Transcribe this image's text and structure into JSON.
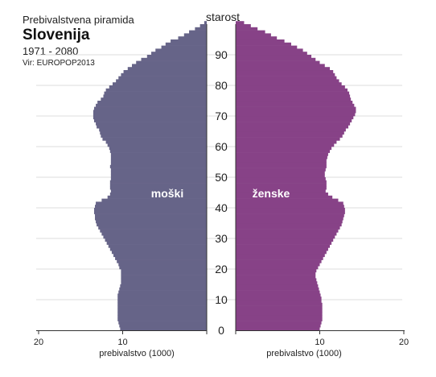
{
  "header": {
    "line1": "Prebivalstvena piramida",
    "title": "Slovenija",
    "period": "1971 - 2080",
    "source": "Vir: EUROPOP2013"
  },
  "colors": {
    "male": "#666488",
    "female": "#874287",
    "grid": "#dddddd",
    "axis": "#333333"
  },
  "chart_data": {
    "type": "bar",
    "orientation": "horizontal",
    "ylabel": "starost",
    "xlabel": "prebivalstvo (1000)",
    "xlim": [
      0,
      20
    ],
    "ylim": [
      0,
      100
    ],
    "y_ticks": [
      0,
      10,
      20,
      30,
      40,
      50,
      60,
      70,
      80,
      90
    ],
    "x_ticks_left": [
      "20",
      "10"
    ],
    "x_ticks_right": [
      "10",
      "20"
    ],
    "series": [
      {
        "name": "moški",
        "side": "left",
        "values": [
          10.3,
          10.4,
          10.5,
          10.6,
          10.6,
          10.6,
          10.6,
          10.6,
          10.6,
          10.6,
          10.6,
          10.6,
          10.5,
          10.4,
          10.3,
          10.2,
          10.2,
          10.2,
          10.2,
          10.2,
          10.4,
          10.5,
          10.7,
          10.9,
          11.1,
          11.3,
          11.5,
          11.7,
          11.9,
          12.1,
          12.3,
          12.5,
          12.7,
          12.9,
          13.1,
          13.2,
          13.3,
          13.3,
          13.4,
          13.4,
          13.3,
          13.2,
          12.5,
          11.8,
          11.5,
          11.4,
          11.5,
          11.5,
          11.5,
          11.4,
          11.4,
          11.4,
          11.4,
          11.5,
          11.4,
          11.4,
          11.4,
          11.4,
          11.5,
          11.6,
          11.8,
          12.0,
          12.4,
          12.6,
          12.7,
          12.8,
          13.1,
          13.2,
          13.4,
          13.5,
          13.5,
          13.5,
          13.4,
          13.2,
          13.0,
          12.6,
          12.3,
          12.2,
          12.0,
          11.6,
          11.2,
          10.8,
          10.5,
          10.2,
          9.9,
          9.4,
          8.9,
          8.4,
          7.8,
          7.1,
          6.6,
          6.1,
          5.4,
          4.9,
          4.3,
          3.4,
          2.7,
          2.1,
          1.4,
          0.8,
          0.3
        ]
      },
      {
        "name": "ženske",
        "side": "right",
        "values": [
          10.0,
          10.1,
          10.2,
          10.3,
          10.3,
          10.3,
          10.3,
          10.3,
          10.3,
          10.2,
          10.2,
          10.1,
          10.0,
          9.9,
          9.8,
          9.7,
          9.6,
          9.5,
          9.5,
          9.6,
          9.8,
          10.0,
          10.2,
          10.4,
          10.6,
          10.8,
          11.0,
          11.2,
          11.4,
          11.6,
          11.8,
          12.0,
          12.2,
          12.4,
          12.6,
          12.7,
          12.8,
          12.9,
          13.0,
          13.0,
          12.9,
          12.8,
          12.2,
          11.5,
          11.0,
          10.7,
          10.8,
          10.8,
          10.8,
          10.7,
          10.6,
          10.6,
          10.7,
          10.8,
          10.8,
          10.8,
          10.9,
          11.0,
          11.2,
          11.4,
          11.7,
          12.0,
          12.4,
          12.7,
          12.9,
          13.1,
          13.4,
          13.6,
          13.8,
          14.0,
          14.2,
          14.3,
          14.3,
          14.1,
          13.9,
          13.7,
          13.6,
          13.5,
          13.3,
          13.0,
          12.6,
          12.3,
          12.0,
          11.8,
          11.6,
          11.2,
          10.6,
          10.0,
          9.5,
          9.0,
          8.5,
          8.0,
          7.3,
          6.6,
          5.8,
          4.9,
          4.2,
          3.5,
          2.6,
          1.8,
          1.0
        ]
      }
    ]
  }
}
